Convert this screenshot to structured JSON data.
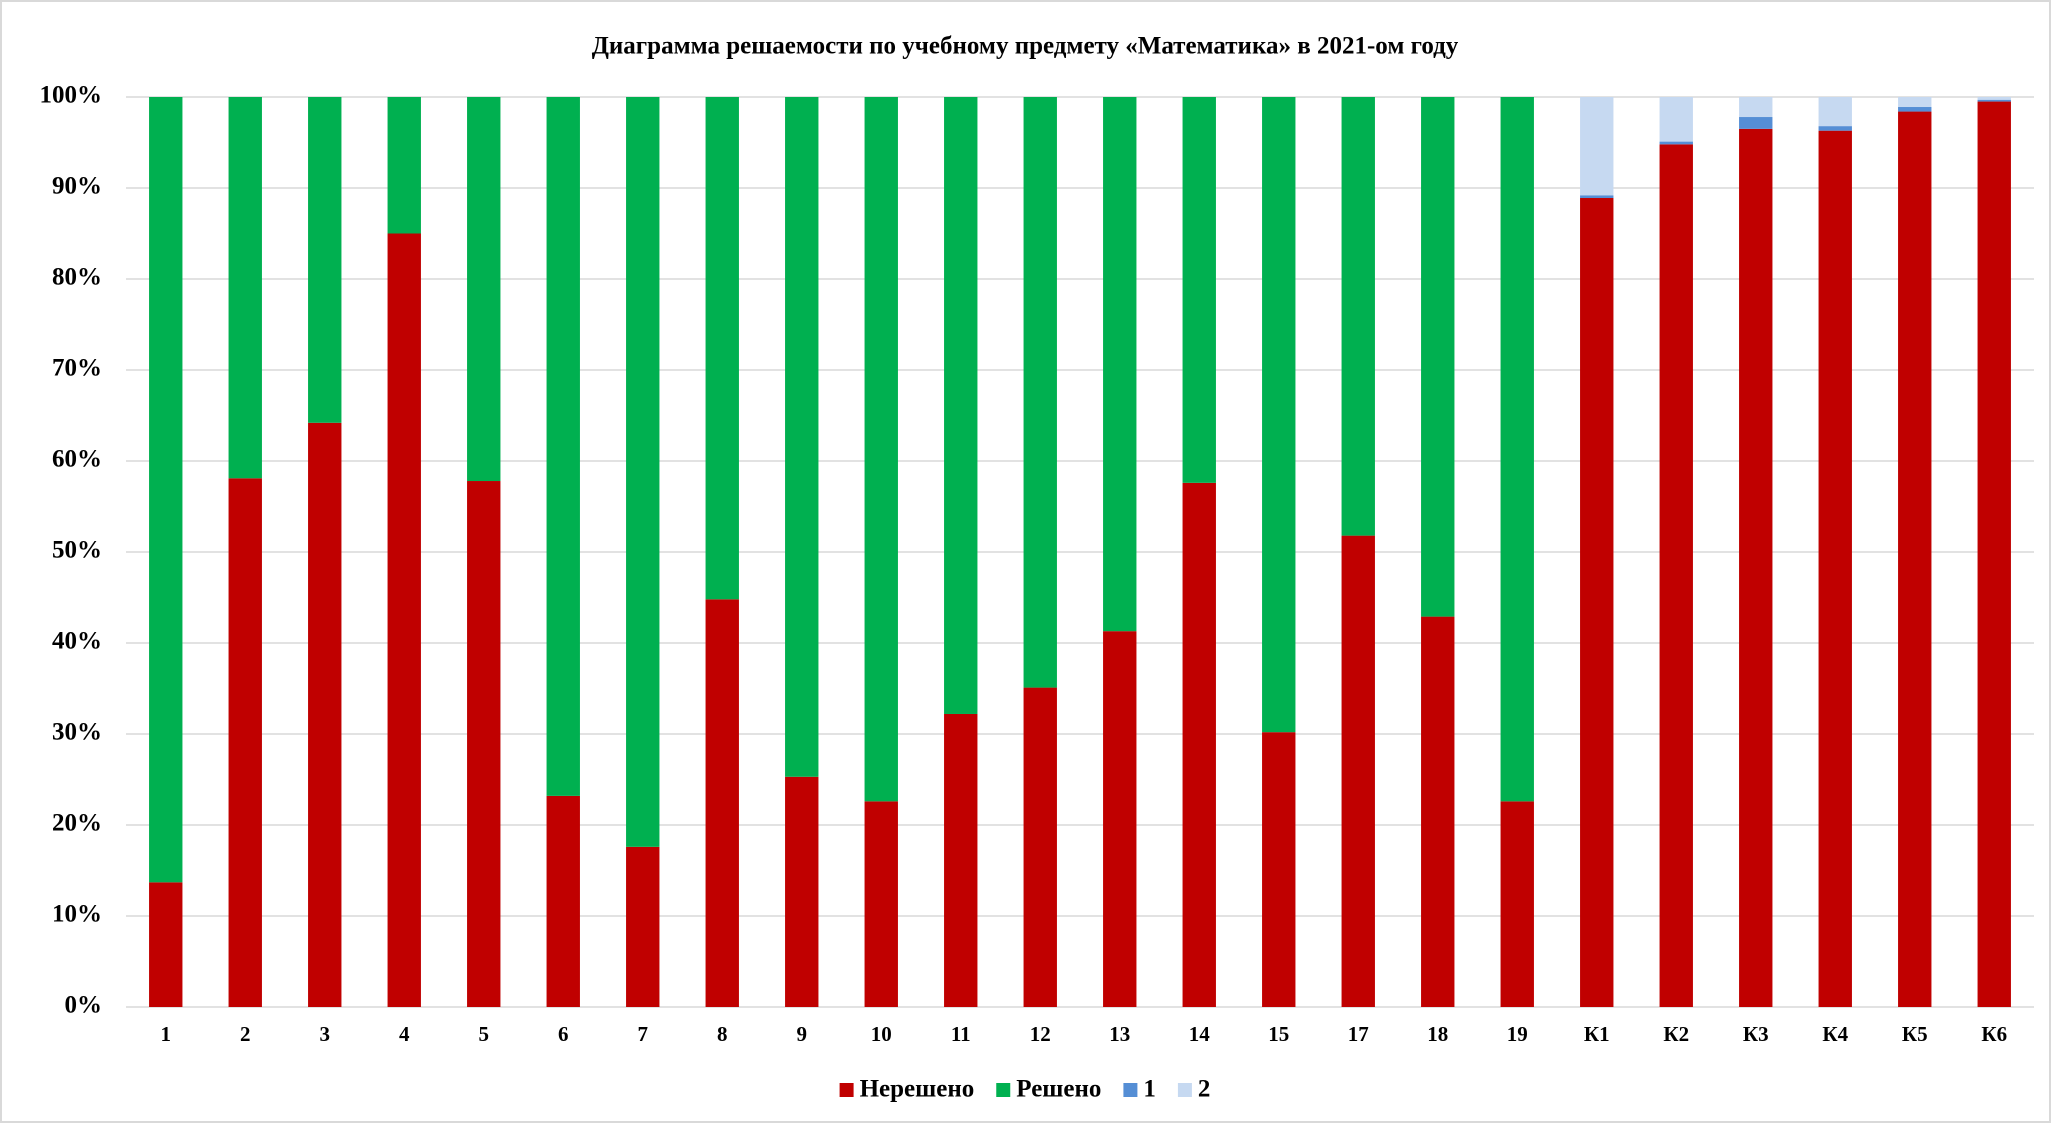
{
  "chart_data": {
    "type": "stacked_bar",
    "title": "Диаграмма решаемости по учебному предмету «Математика»  в 2021-ом году",
    "categories": [
      "1",
      "2",
      "3",
      "4",
      "5",
      "6",
      "7",
      "8",
      "9",
      "10",
      "11",
      "12",
      "13",
      "14",
      "15",
      "17",
      "18",
      "19",
      "К1",
      "К2",
      "К3",
      "К4",
      "К5",
      "К6"
    ],
    "series": [
      {
        "name": "Нерешено",
        "color": "#c00000",
        "values": [
          13.7,
          58.1,
          64.2,
          85.0,
          57.8,
          23.2,
          17.6,
          44.8,
          25.3,
          22.6,
          32.2,
          35.1,
          41.3,
          57.6,
          30.2,
          51.8,
          42.9,
          22.6,
          88.9,
          94.8,
          96.5,
          96.3,
          98.4,
          99.5
        ]
      },
      {
        "name": "Решено",
        "color": "#00b050",
        "values": [
          86.3,
          41.9,
          35.8,
          15.0,
          42.2,
          76.8,
          82.4,
          55.2,
          74.7,
          77.4,
          67.8,
          64.9,
          58.7,
          42.4,
          69.8,
          48.2,
          57.1,
          77.4,
          0,
          0,
          0,
          0,
          0,
          0
        ]
      },
      {
        "name": "1",
        "color": "#558ed5",
        "values": [
          0,
          0,
          0,
          0,
          0,
          0,
          0,
          0,
          0,
          0,
          0,
          0,
          0,
          0,
          0,
          0,
          0,
          0,
          0.3,
          0.3,
          1.3,
          0.5,
          0.5,
          0.2
        ]
      },
      {
        "name": "2",
        "color": "#c6d9f1",
        "values": [
          0,
          0,
          0,
          0,
          0,
          0,
          0,
          0,
          0,
          0,
          0,
          0,
          0,
          0,
          0,
          0,
          0,
          0,
          10.8,
          4.9,
          2.2,
          3.2,
          1.1,
          0.3
        ]
      }
    ],
    "ylim": [
      0,
      100
    ],
    "yticks": [
      {
        "value": 0,
        "label": "0%"
      },
      {
        "value": 10,
        "label": "10%"
      },
      {
        "value": 20,
        "label": "20%"
      },
      {
        "value": 30,
        "label": "30%"
      },
      {
        "value": 40,
        "label": "40%"
      },
      {
        "value": 50,
        "label": "50%"
      },
      {
        "value": 60,
        "label": "60%"
      },
      {
        "value": 70,
        "label": "70%"
      },
      {
        "value": 80,
        "label": "80%"
      },
      {
        "value": 90,
        "label": "90%"
      },
      {
        "value": 100,
        "label": "100%"
      }
    ],
    "grid": true,
    "legend": "bottom"
  }
}
